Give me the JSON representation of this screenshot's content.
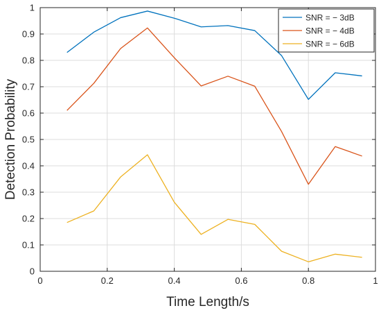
{
  "chart_data": {
    "type": "line",
    "title": "",
    "xlabel": "Time Length/s",
    "ylabel": "Detection Probability",
    "xlim": [
      0,
      1
    ],
    "ylim": [
      0,
      1
    ],
    "xticks": [
      0,
      0.2,
      0.4,
      0.6,
      0.8,
      1
    ],
    "xtick_labels": [
      "0",
      "0.2",
      "0.4",
      "0.6",
      "0.8",
      "1"
    ],
    "yticks": [
      0,
      0.1,
      0.2,
      0.3,
      0.4,
      0.5,
      0.6,
      0.7,
      0.8,
      0.9,
      1
    ],
    "ytick_labels": [
      "0",
      "0.1",
      "0.2",
      "0.3",
      "0.4",
      "0.5",
      "0.6",
      "0.7",
      "0.8",
      "0.9",
      "1"
    ],
    "grid": true,
    "legend_position": "top-right",
    "x": [
      0.08,
      0.16,
      0.24,
      0.32,
      0.4,
      0.48,
      0.56,
      0.64,
      0.72,
      0.8,
      0.88,
      0.96
    ],
    "series": [
      {
        "name": "SNR = − 3dB",
        "color": "#0072BD",
        "values": [
          0.83,
          0.907,
          0.962,
          0.987,
          0.96,
          0.927,
          0.932,
          0.913,
          0.818,
          0.652,
          0.753,
          0.741
        ]
      },
      {
        "name": "SNR = − 4dB",
        "color": "#D95319",
        "values": [
          0.61,
          0.713,
          0.845,
          0.923,
          0.81,
          0.703,
          0.74,
          0.702,
          0.53,
          0.33,
          0.473,
          0.437
        ]
      },
      {
        "name": "SNR = − 6dB",
        "color": "#EDB120",
        "values": [
          0.185,
          0.229,
          0.358,
          0.442,
          0.262,
          0.14,
          0.197,
          0.178,
          0.076,
          0.036,
          0.065,
          0.053
        ]
      }
    ]
  }
}
